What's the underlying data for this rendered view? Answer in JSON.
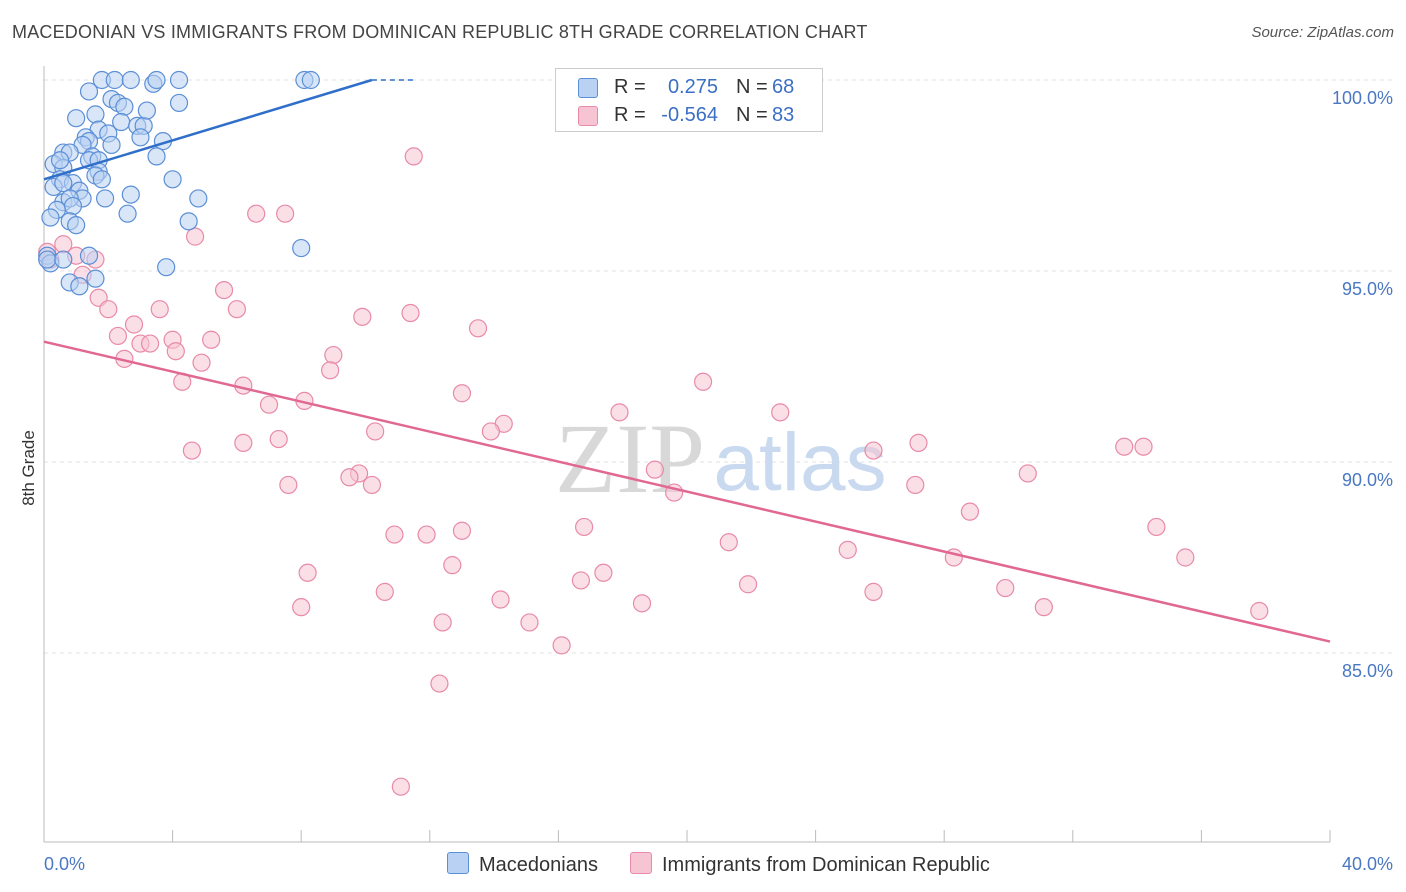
{
  "title": "MACEDONIAN VS IMMIGRANTS FROM DOMINICAN REPUBLIC 8TH GRADE CORRELATION CHART",
  "source": "Source: ZipAtlas.com",
  "watermark": {
    "zip": "ZIP",
    "atlas": "atlas"
  },
  "legend": {
    "rows": [
      {
        "r_label": "R =",
        "r_value": "0.275",
        "n_label": "N =",
        "n_value": "68"
      },
      {
        "r_label": "R =",
        "r_value": "-0.564",
        "n_label": "N =",
        "n_value": "83"
      }
    ]
  },
  "bottom_legend": {
    "series1": "Macedonians",
    "series2": "Immigrants from Dominican Republic"
  },
  "colors": {
    "blue_fill": "#b9d2f3",
    "blue_stroke": "#5b8fd6",
    "blue_line": "#2f6fc9",
    "pink_fill": "#f7c4d4",
    "pink_stroke": "#e88aa8",
    "pink_line": "#e06892",
    "tick_text": "#4a78c2",
    "grid": "#e2e2e2"
  },
  "chart_data": {
    "type": "scatter",
    "title": "MACEDONIAN VS IMMIGRANTS FROM DOMINICAN REPUBLIC 8TH GRADE CORRELATION CHART",
    "xlabel": "",
    "ylabel": "8th Grade",
    "xlim": [
      0,
      40
    ],
    "ylim": [
      80.5,
      100.8
    ],
    "x_tick_labels": [
      {
        "value": 0,
        "label": "0.0%"
      },
      {
        "value": 40,
        "label": "40.0%"
      }
    ],
    "y_tick_labels": [
      {
        "value": 100,
        "label": "100.0%"
      },
      {
        "value": 95,
        "label": "95.0%"
      },
      {
        "value": 90,
        "label": "90.0%"
      },
      {
        "value": 85,
        "label": "85.0%"
      }
    ],
    "series": [
      {
        "name": "Macedonians",
        "r": 0.275,
        "n": 68,
        "trend": {
          "x": [
            0,
            10.2
          ],
          "y": [
            97.4,
            100.0
          ],
          "dashed_to": [
            11.5,
            100.0
          ]
        },
        "points": [
          [
            1.8,
            100
          ],
          [
            2.2,
            100
          ],
          [
            2.7,
            100
          ],
          [
            3.4,
            99.9
          ],
          [
            3.5,
            100
          ],
          [
            4.2,
            100
          ],
          [
            8.1,
            100
          ],
          [
            8.3,
            100
          ],
          [
            1.4,
            99.7
          ],
          [
            2.1,
            99.5
          ],
          [
            2.3,
            99.4
          ],
          [
            2.5,
            99.3
          ],
          [
            4.2,
            99.4
          ],
          [
            1.6,
            99.1
          ],
          [
            2.4,
            98.9
          ],
          [
            2.9,
            98.8
          ],
          [
            3.1,
            98.8
          ],
          [
            1.7,
            98.7
          ],
          [
            2.0,
            98.6
          ],
          [
            1.3,
            98.5
          ],
          [
            3.0,
            98.5
          ],
          [
            3.7,
            98.4
          ],
          [
            1.4,
            98.4
          ],
          [
            2.1,
            98.3
          ],
          [
            1.2,
            98.3
          ],
          [
            0.6,
            98.1
          ],
          [
            0.8,
            98.1
          ],
          [
            1.5,
            98.0
          ],
          [
            1.4,
            97.9
          ],
          [
            1.7,
            97.9
          ],
          [
            3.5,
            98.0
          ],
          [
            0.3,
            97.8
          ],
          [
            0.6,
            97.7
          ],
          [
            1.7,
            97.6
          ],
          [
            1.6,
            97.5
          ],
          [
            1.8,
            97.4
          ],
          [
            4.0,
            97.4
          ],
          [
            0.5,
            97.4
          ],
          [
            0.9,
            97.3
          ],
          [
            0.3,
            97.2
          ],
          [
            0.6,
            97.3
          ],
          [
            1.1,
            97.1
          ],
          [
            2.7,
            97.0
          ],
          [
            1.2,
            96.9
          ],
          [
            4.8,
            96.9
          ],
          [
            0.6,
            96.8
          ],
          [
            0.8,
            96.9
          ],
          [
            0.9,
            96.7
          ],
          [
            0.4,
            96.6
          ],
          [
            0.2,
            96.4
          ],
          [
            2.6,
            96.5
          ],
          [
            0.8,
            96.3
          ],
          [
            1.0,
            96.2
          ],
          [
            4.5,
            96.3
          ],
          [
            8.0,
            95.6
          ],
          [
            1.4,
            95.4
          ],
          [
            0.1,
            95.4
          ],
          [
            0.2,
            95.2
          ],
          [
            3.8,
            95.1
          ],
          [
            1.6,
            94.8
          ],
          [
            0.8,
            94.7
          ],
          [
            1.1,
            94.6
          ],
          [
            0.1,
            95.3
          ],
          [
            0.6,
            95.3
          ],
          [
            1.9,
            96.9
          ],
          [
            0.5,
            97.9
          ],
          [
            3.2,
            99.2
          ],
          [
            1.0,
            99.0
          ]
        ]
      },
      {
        "name": "Immigrants from Dominican Republic",
        "r": -0.564,
        "n": 83,
        "trend": {
          "x": [
            0,
            40
          ],
          "y": [
            93.15,
            85.3
          ]
        },
        "points": [
          [
            11.5,
            98.0
          ],
          [
            6.6,
            96.5
          ],
          [
            7.5,
            96.5
          ],
          [
            4.7,
            95.9
          ],
          [
            0.6,
            95.7
          ],
          [
            1.0,
            95.4
          ],
          [
            1.6,
            95.3
          ],
          [
            0.2,
            95.3
          ],
          [
            1.2,
            94.9
          ],
          [
            5.6,
            94.5
          ],
          [
            1.7,
            94.3
          ],
          [
            6.0,
            94.0
          ],
          [
            2.0,
            94.0
          ],
          [
            3.6,
            94.0
          ],
          [
            9.9,
            93.8
          ],
          [
            11.4,
            93.9
          ],
          [
            13.5,
            93.5
          ],
          [
            2.8,
            93.6
          ],
          [
            2.3,
            93.3
          ],
          [
            4.0,
            93.2
          ],
          [
            5.2,
            93.2
          ],
          [
            3.0,
            93.1
          ],
          [
            3.3,
            93.1
          ],
          [
            4.1,
            92.9
          ],
          [
            9.0,
            92.8
          ],
          [
            2.5,
            92.7
          ],
          [
            4.9,
            92.6
          ],
          [
            8.9,
            92.4
          ],
          [
            20.5,
            92.1
          ],
          [
            4.3,
            92.1
          ],
          [
            6.2,
            92.0
          ],
          [
            13.0,
            91.8
          ],
          [
            8.1,
            91.6
          ],
          [
            7.0,
            91.5
          ],
          [
            17.9,
            91.3
          ],
          [
            22.9,
            91.3
          ],
          [
            14.3,
            91.0
          ],
          [
            10.3,
            90.8
          ],
          [
            13.9,
            90.8
          ],
          [
            7.3,
            90.6
          ],
          [
            6.2,
            90.5
          ],
          [
            4.6,
            90.3
          ],
          [
            25.8,
            90.3
          ],
          [
            27.2,
            90.5
          ],
          [
            33.6,
            90.4
          ],
          [
            34.2,
            90.4
          ],
          [
            19.0,
            89.8
          ],
          [
            9.8,
            89.7
          ],
          [
            9.5,
            89.6
          ],
          [
            30.6,
            89.7
          ],
          [
            10.2,
            89.4
          ],
          [
            7.6,
            89.4
          ],
          [
            27.1,
            89.4
          ],
          [
            19.6,
            89.2
          ],
          [
            28.8,
            88.7
          ],
          [
            13.0,
            88.2
          ],
          [
            16.8,
            88.3
          ],
          [
            34.6,
            88.3
          ],
          [
            11.9,
            88.1
          ],
          [
            10.9,
            88.1
          ],
          [
            21.3,
            87.9
          ],
          [
            25.0,
            87.7
          ],
          [
            35.5,
            87.5
          ],
          [
            28.3,
            87.5
          ],
          [
            12.7,
            87.3
          ],
          [
            8.2,
            87.1
          ],
          [
            17.4,
            87.1
          ],
          [
            16.7,
            86.9
          ],
          [
            21.9,
            86.8
          ],
          [
            29.9,
            86.7
          ],
          [
            10.6,
            86.6
          ],
          [
            25.8,
            86.6
          ],
          [
            14.2,
            86.4
          ],
          [
            18.6,
            86.3
          ],
          [
            8.0,
            86.2
          ],
          [
            31.1,
            86.2
          ],
          [
            37.8,
            86.1
          ],
          [
            12.4,
            85.8
          ],
          [
            15.1,
            85.8
          ],
          [
            16.1,
            85.2
          ],
          [
            12.3,
            84.2
          ],
          [
            11.1,
            81.5
          ],
          [
            0.1,
            95.5
          ]
        ]
      }
    ]
  }
}
